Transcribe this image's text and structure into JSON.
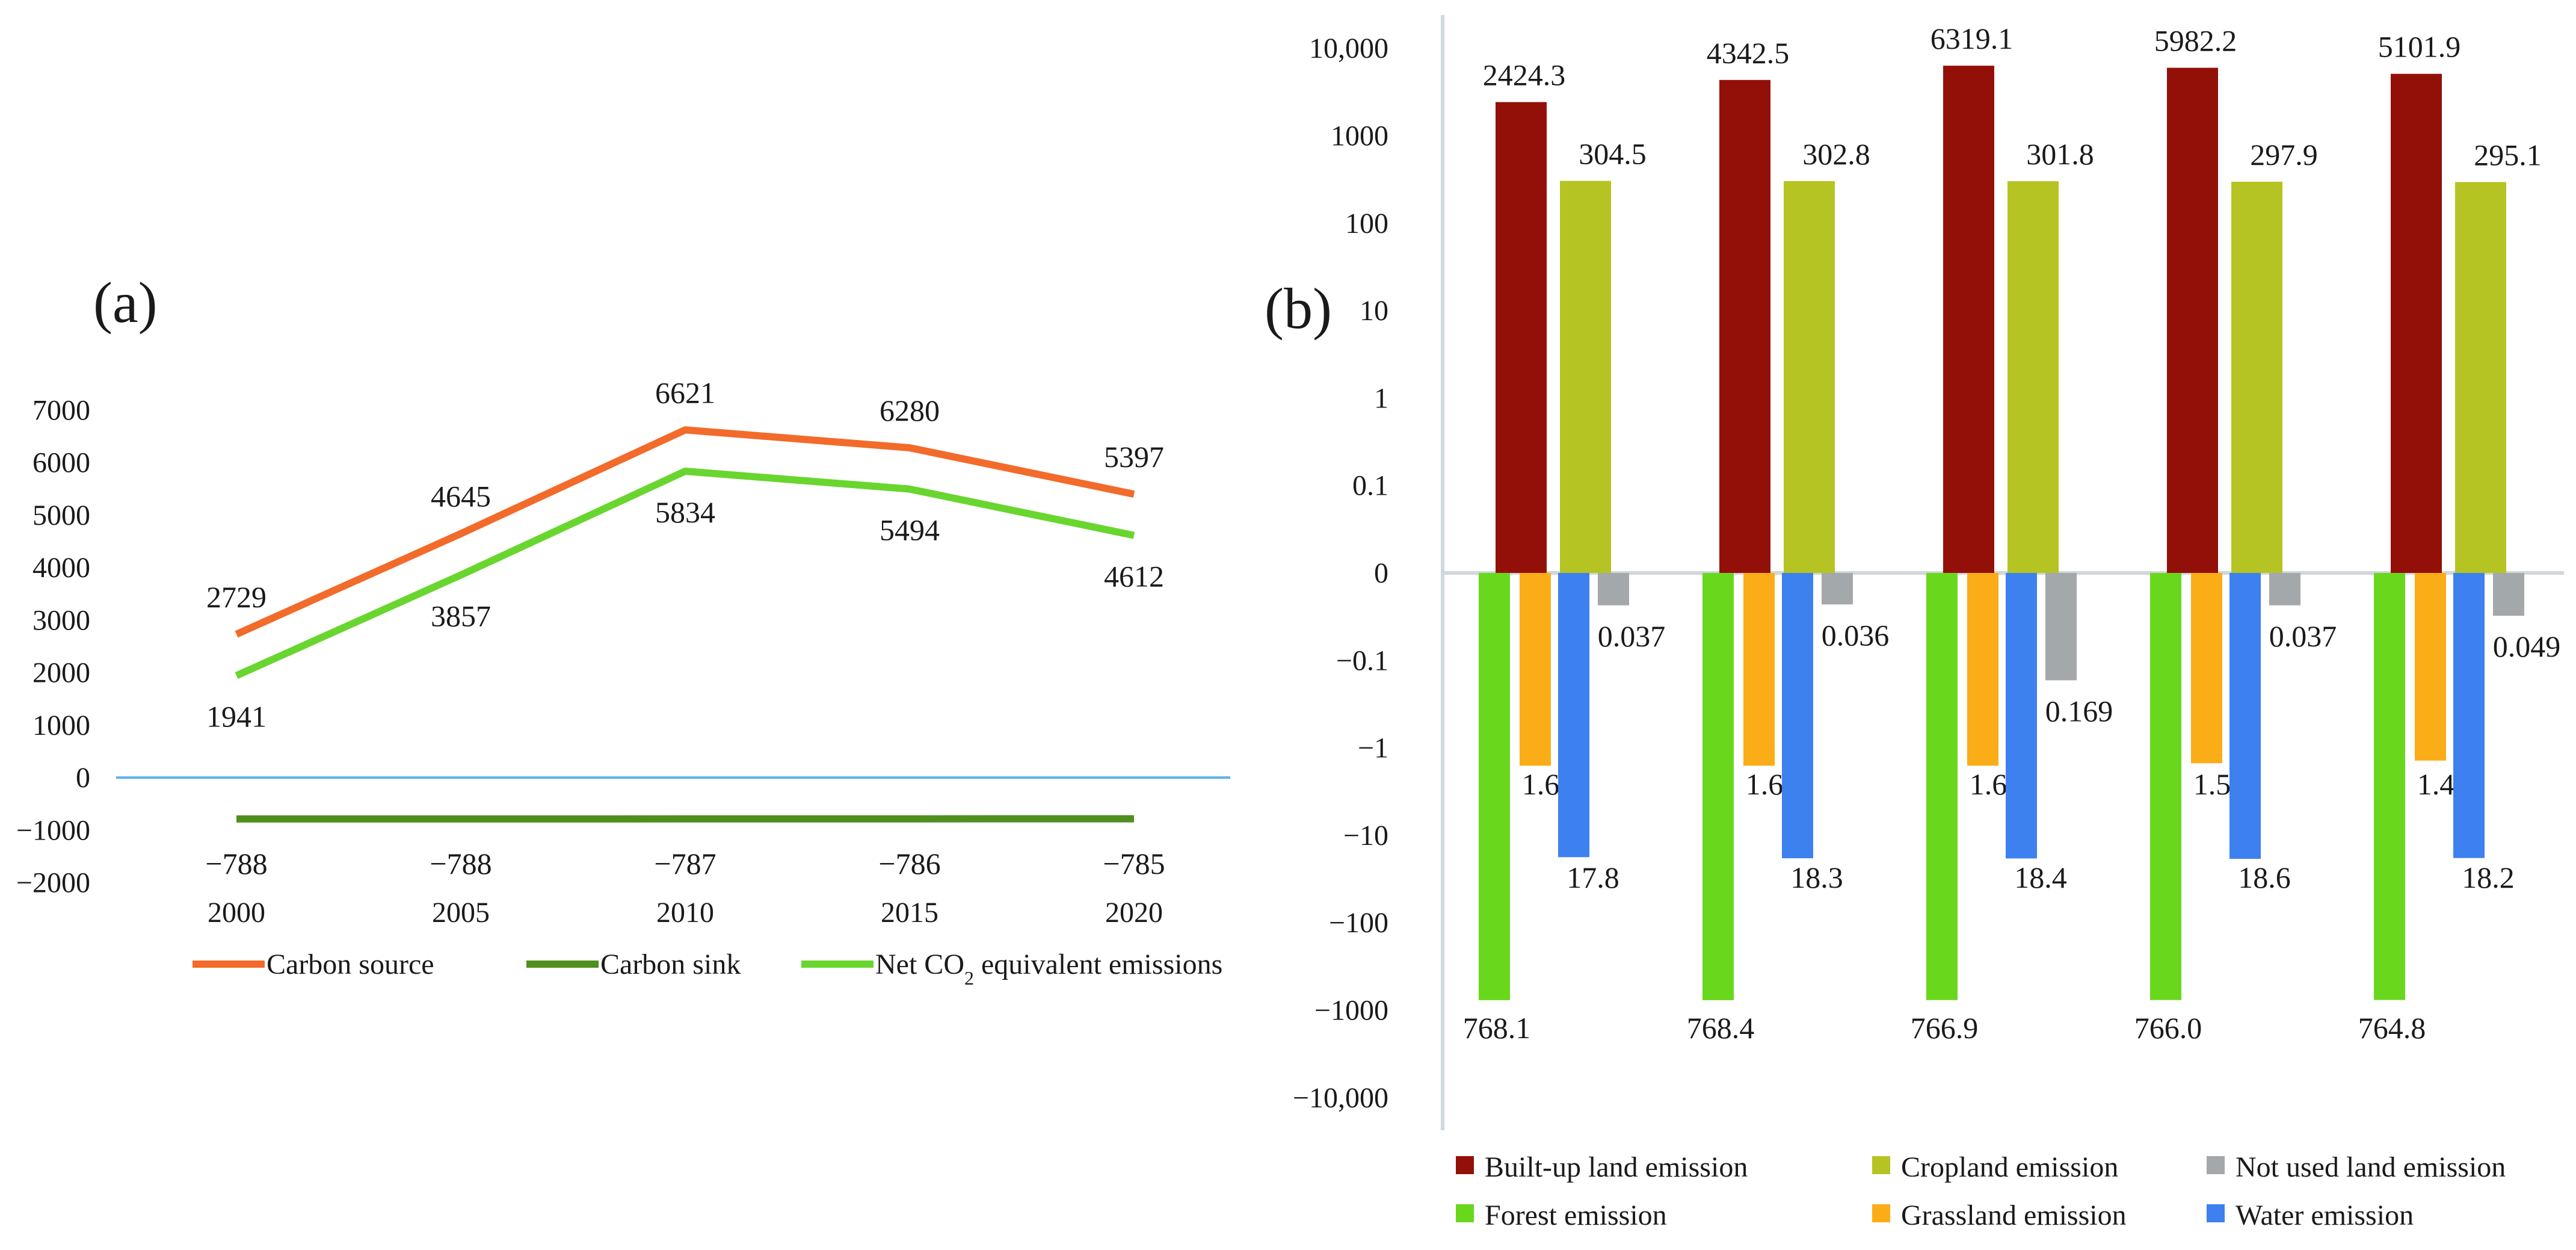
{
  "chart_data": [
    {
      "panel": "(a)",
      "type": "line",
      "categories": [
        "2000",
        "2005",
        "2010",
        "2015",
        "2020"
      ],
      "y_ticks": [
        "7000",
        "6000",
        "5000",
        "4000",
        "3000",
        "2000",
        "1000",
        "0",
        "−1000",
        "−2000"
      ],
      "ylim": [
        -2000,
        7000
      ],
      "series": [
        {
          "name": "Carbon source",
          "color": "#f26b2a",
          "values": [
            2729,
            4645,
            6621,
            6280,
            5397
          ],
          "labels": [
            "2729",
            "4645",
            "6621",
            "6280",
            "5397"
          ],
          "label_position": "above"
        },
        {
          "name": "Carbon sink",
          "color": "#4e8f1d",
          "values": [
            -788,
            -788,
            -787,
            -786,
            -785
          ],
          "labels": [
            "−788",
            "−788",
            "−787",
            "−786",
            "−785"
          ],
          "label_position": "below"
        },
        {
          "name_parts": [
            "Net CO",
            "2",
            " equivalent emissions"
          ],
          "name": "Net CO2 equivalent emissions",
          "color": "#69d62f",
          "values": [
            1941,
            3857,
            5834,
            5494,
            4612
          ],
          "labels": [
            "1941",
            "3857",
            "5834",
            "5494",
            "4612"
          ],
          "label_position": "below"
        }
      ],
      "zero_line_color": "#5bb4e8",
      "legend": "bottom"
    },
    {
      "panel": "(b)",
      "type": "bar",
      "scale": "symlog",
      "groups": [
        "2000",
        "2005",
        "2010",
        "2015",
        "2020"
      ],
      "y_ticks": [
        {
          "label": "10,000",
          "value": 10000
        },
        {
          "label": "1000",
          "value": 1000
        },
        {
          "label": "100",
          "value": 100
        },
        {
          "label": "10",
          "value": 10
        },
        {
          "label": "1",
          "value": 1
        },
        {
          "label": "0.1",
          "value": 0.1
        },
        {
          "label": "0",
          "value": 0
        },
        {
          "label": "−0.1",
          "value": -0.1
        },
        {
          "label": "−1",
          "value": -1
        },
        {
          "label": "−10",
          "value": -10
        },
        {
          "label": "−100",
          "value": -100
        },
        {
          "label": "−1000",
          "value": -1000
        },
        {
          "label": "−10,000",
          "value": -10000
        }
      ],
      "series": [
        {
          "name": "Built-up land emission",
          "color": "#931008",
          "sign": 1,
          "values": [
            2424.3,
            4342.5,
            6319.1,
            5982.2,
            5101.9
          ],
          "labels": [
            "2424.3",
            "4342.5",
            "6319.1",
            "5982.2",
            "5101.9"
          ]
        },
        {
          "name": "Cropland emission",
          "color": "#b5c423",
          "sign": 1,
          "values": [
            304.5,
            302.8,
            301.8,
            297.9,
            295.1
          ],
          "labels": [
            "304.5",
            "302.8",
            "301.8",
            "297.9",
            "295.1"
          ]
        },
        {
          "name": "Not used land emission",
          "color": "#a3a8ab",
          "sign": -1,
          "values": [
            0.037,
            0.036,
            0.169,
            0.037,
            0.049
          ],
          "labels": [
            "0.037",
            "0.036",
            "0.169",
            "0.037",
            "0.049"
          ]
        },
        {
          "name": "Forest emission",
          "color": "#69d81c",
          "sign": -1,
          "values": [
            768.1,
            768.4,
            766.9,
            766.0,
            764.8
          ],
          "labels": [
            "768.1",
            "768.4",
            "766.9",
            "766.0",
            "764.8"
          ]
        },
        {
          "name": "Grassland emission",
          "color": "#fbad18",
          "sign": -1,
          "values": [
            1.6,
            1.6,
            1.6,
            1.5,
            1.4
          ],
          "labels": [
            "1.6",
            "1.6",
            "1.6",
            "1.5",
            "1.4"
          ]
        },
        {
          "name": "Water emission",
          "color": "#3d80ef",
          "sign": -1,
          "values": [
            17.8,
            18.3,
            18.4,
            18.6,
            18.2
          ],
          "labels": [
            "17.8",
            "18.3",
            "18.4",
            "18.6",
            "18.2"
          ]
        }
      ],
      "legend_order": [
        [
          "Built-up land emission",
          "Cropland emission",
          "Not used land emission"
        ],
        [
          "Forest emission",
          "Grassland emission",
          "Water emission"
        ]
      ],
      "legend": "bottom"
    }
  ]
}
